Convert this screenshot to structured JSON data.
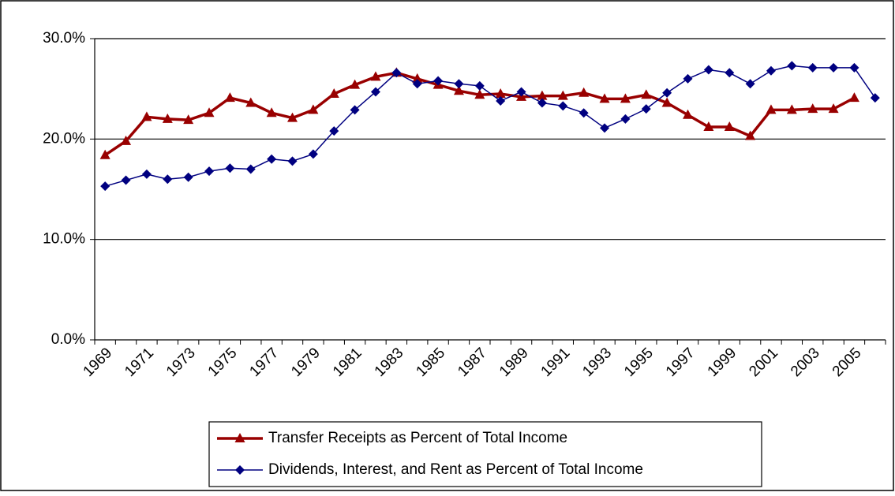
{
  "chart_data": {
    "type": "line",
    "categories": [
      "1969",
      null,
      "1971",
      null,
      "1973",
      null,
      "1975",
      null,
      "1977",
      null,
      "1979",
      null,
      "1981",
      null,
      "1983",
      null,
      "1985",
      null,
      "1987",
      null,
      "1989",
      null,
      "1991",
      null,
      "1993",
      null,
      "1995",
      null,
      "1997",
      null,
      "1999",
      null,
      "2001",
      null,
      "2003",
      null,
      "2005",
      null
    ],
    "series": [
      {
        "name": "Transfer Receipts as Percent of Total Income",
        "color": "#990000",
        "marker": "triangle",
        "values": [
          18.4,
          19.8,
          22.2,
          22.0,
          21.9,
          22.6,
          24.1,
          23.6,
          22.6,
          22.1,
          22.9,
          24.5,
          25.4,
          26.2,
          26.6,
          26.0,
          25.4,
          24.8,
          24.4,
          24.5,
          24.2,
          24.3,
          24.3,
          24.6,
          24.0,
          24.0,
          24.4,
          23.6,
          22.4,
          21.2,
          21.2,
          20.3,
          22.9,
          22.9,
          23.0,
          23.0,
          24.1,
          null
        ]
      },
      {
        "name": "Dividends, Interest, and Rent as Percent of Total Income",
        "color": "#000080",
        "marker": "diamond",
        "values": [
          15.3,
          15.9,
          16.5,
          16.0,
          16.2,
          16.8,
          17.1,
          17.0,
          18.0,
          17.8,
          18.5,
          20.8,
          22.9,
          24.7,
          26.6,
          25.5,
          25.8,
          25.5,
          25.3,
          23.8,
          24.7,
          23.6,
          23.3,
          22.6,
          21.1,
          22.0,
          23.0,
          24.6,
          26.0,
          26.9,
          26.6,
          25.5,
          26.8,
          27.3,
          27.1,
          27.1,
          27.1,
          24.1
        ]
      }
    ],
    "ylim": [
      0,
      30
    ],
    "yticks": [
      {
        "value": 0,
        "label": "0.0%"
      },
      {
        "value": 10,
        "label": "10.0%"
      },
      {
        "value": 20,
        "label": "20.0%"
      },
      {
        "value": 30,
        "label": "30.0%"
      }
    ],
    "grid": true,
    "legend": "bottom"
  }
}
